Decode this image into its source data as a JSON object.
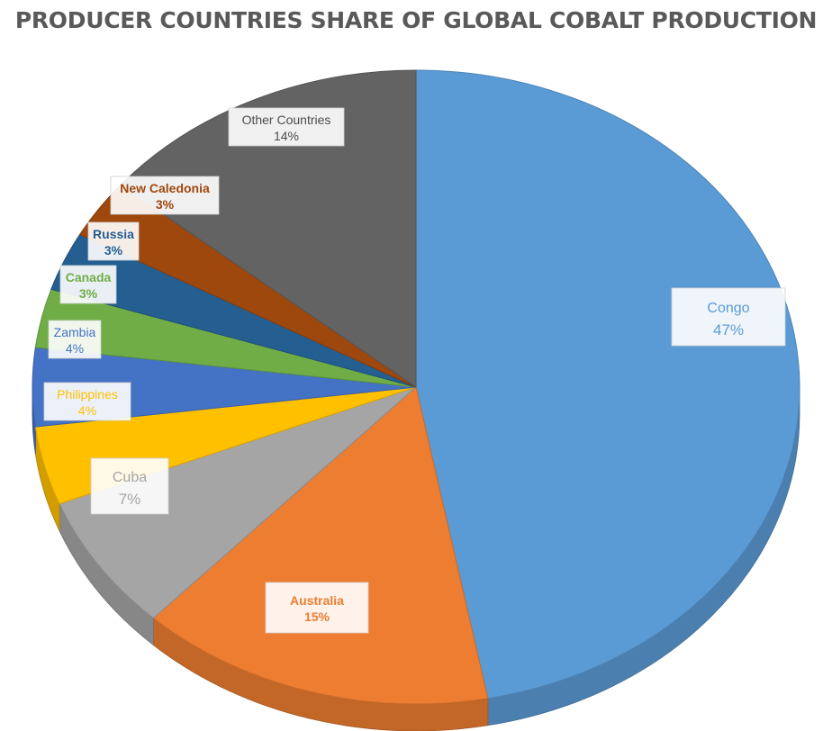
{
  "chart_data": {
    "type": "pie",
    "title": "PRODUCER COUNTRIES SHARE OF GLOBAL COBALT PRODUCTION",
    "slices": [
      {
        "label": "Congo",
        "value": 47,
        "value_label": "47%",
        "color": "#5b9bd5"
      },
      {
        "label": "Australia",
        "value": 15,
        "value_label": "15%",
        "color": "#ed7d31"
      },
      {
        "label": "Cuba",
        "value": 7,
        "value_label": "7%",
        "color": "#a5a5a5"
      },
      {
        "label": "Philippines",
        "value": 4,
        "value_label": "4%",
        "color": "#ffc000"
      },
      {
        "label": "Zambia",
        "value": 4,
        "value_label": "4%",
        "color": "#4472c4"
      },
      {
        "label": "Canada",
        "value": 3,
        "value_label": "3%",
        "color": "#70ad47"
      },
      {
        "label": "Russia",
        "value": 3,
        "value_label": "3%",
        "color": "#255e91"
      },
      {
        "label": "New Caledonia",
        "value": 3,
        "value_label": "3%",
        "color": "#9e480e"
      },
      {
        "label": "Other Countries",
        "value": 14,
        "value_label": "14%",
        "color": "#636363"
      }
    ],
    "legend": false,
    "style": "3d"
  }
}
